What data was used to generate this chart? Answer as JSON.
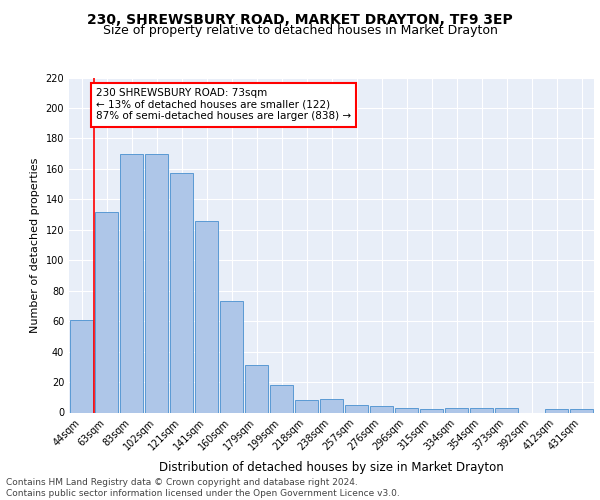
{
  "title1": "230, SHREWSBURY ROAD, MARKET DRAYTON, TF9 3EP",
  "title2": "Size of property relative to detached houses in Market Drayton",
  "xlabel": "Distribution of detached houses by size in Market Drayton",
  "ylabel": "Number of detached properties",
  "categories": [
    "44sqm",
    "63sqm",
    "83sqm",
    "102sqm",
    "121sqm",
    "141sqm",
    "160sqm",
    "179sqm",
    "199sqm",
    "218sqm",
    "238sqm",
    "257sqm",
    "276sqm",
    "296sqm",
    "315sqm",
    "334sqm",
    "354sqm",
    "373sqm",
    "392sqm",
    "412sqm",
    "431sqm"
  ],
  "values": [
    61,
    132,
    170,
    170,
    157,
    126,
    73,
    31,
    18,
    8,
    9,
    5,
    4,
    3,
    2,
    3,
    3,
    3,
    0,
    2,
    2
  ],
  "bar_color": "#aec6e8",
  "bar_edge_color": "#5a9ad4",
  "bg_color": "#e8eef8",
  "grid_color": "#ffffff",
  "property_line_x": 0.5,
  "annotation_text": "230 SHREWSBURY ROAD: 73sqm\n← 13% of detached houses are smaller (122)\n87% of semi-detached houses are larger (838) →",
  "annotation_box_color": "white",
  "annotation_box_edge_color": "red",
  "vline_color": "red",
  "ylim": [
    0,
    220
  ],
  "yticks": [
    0,
    20,
    40,
    60,
    80,
    100,
    120,
    140,
    160,
    180,
    200,
    220
  ],
  "footer": "Contains HM Land Registry data © Crown copyright and database right 2024.\nContains public sector information licensed under the Open Government Licence v3.0.",
  "title1_fontsize": 10,
  "title2_fontsize": 9,
  "xlabel_fontsize": 8.5,
  "ylabel_fontsize": 8,
  "tick_fontsize": 7,
  "annotation_fontsize": 7.5,
  "footer_fontsize": 6.5
}
